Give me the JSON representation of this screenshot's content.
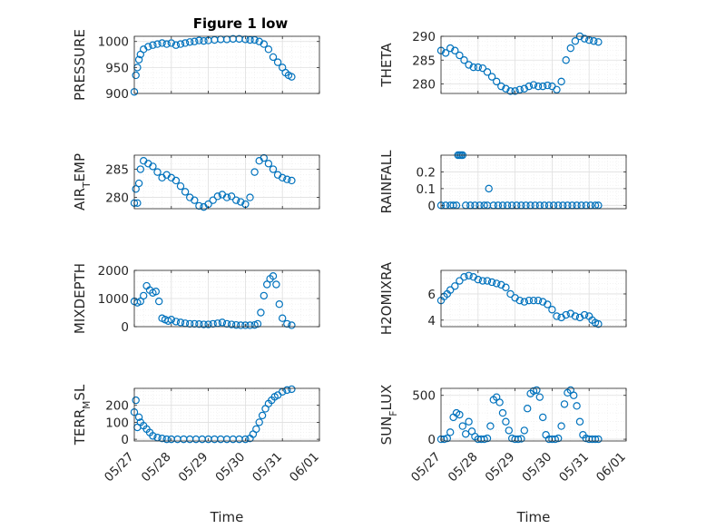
{
  "figure": {
    "title": "Figure 1 low",
    "colors": {
      "marker": "#0072BD",
      "axis": "#262626",
      "grid": "#DFDFDF",
      "minor_grid": "#EBEBEB",
      "background": "#FFFFFF"
    }
  },
  "chart_data": [
    {
      "type": "scatter",
      "position": "top-left",
      "title": "Figure 1 low",
      "ylabel": "PRESSURE",
      "xlabel": "",
      "ylim": [
        900,
        1010
      ],
      "yticks": [
        "900",
        "950",
        "1000"
      ],
      "ytick_values": [
        900,
        950,
        1000
      ],
      "xticks": [],
      "grid": true,
      "x": [
        "05/27 00:00",
        "05/27 01:00",
        "05/27 02:00",
        "05/27 03:00",
        "05/27 04:00",
        "05/27 06:00",
        "05/27 09:00",
        "05/27 12:00",
        "05/27 15:00",
        "05/27 18:00",
        "05/27 21:00",
        "05/28 00:00",
        "05/28 03:00",
        "05/28 06:00",
        "05/28 09:00",
        "05/28 12:00",
        "05/28 15:00",
        "05/28 18:00",
        "05/28 21:00",
        "05/29 00:00",
        "05/29 04:00",
        "05/29 08:00",
        "05/29 12:00",
        "05/29 16:00",
        "05/29 20:00",
        "05/30 00:00",
        "05/30 03:00",
        "05/30 06:00",
        "05/30 09:00",
        "05/30 12:00",
        "05/30 15:00",
        "05/30 18:00",
        "05/30 21:00",
        "05/31 00:00",
        "05/31 02:00",
        "05/31 04:00",
        "05/31 06:00"
      ],
      "y": [
        903,
        935,
        950,
        965,
        975,
        985,
        990,
        993,
        995,
        997,
        995,
        997,
        993,
        995,
        997,
        999,
        1000,
        1002,
        1001,
        1002,
        1003,
        1004,
        1004,
        1005,
        1005,
        1004,
        1003,
        1003,
        1000,
        995,
        985,
        970,
        960,
        950,
        940,
        935,
        932
      ]
    },
    {
      "type": "scatter",
      "position": "top-right",
      "ylabel": "THETA",
      "xlabel": "",
      "ylim": [
        278,
        290
      ],
      "yticks": [
        "280",
        "285",
        "290"
      ],
      "ytick_values": [
        280,
        285,
        290
      ],
      "xticks": [],
      "grid": true,
      "x": [
        "05/27 00:00",
        "05/27 03:00",
        "05/27 06:00",
        "05/27 09:00",
        "05/27 12:00",
        "05/27 15:00",
        "05/27 18:00",
        "05/27 21:00",
        "05/28 00:00",
        "05/28 03:00",
        "05/28 06:00",
        "05/28 09:00",
        "05/28 12:00",
        "05/28 15:00",
        "05/28 18:00",
        "05/28 21:00",
        "05/29 00:00",
        "05/29 03:00",
        "05/29 06:00",
        "05/29 09:00",
        "05/29 12:00",
        "05/29 15:00",
        "05/29 18:00",
        "05/29 21:00",
        "05/30 00:00",
        "05/30 03:00",
        "05/30 06:00",
        "05/30 09:00",
        "05/30 12:00",
        "05/30 15:00",
        "05/30 18:00",
        "05/30 21:00",
        "05/31 00:00",
        "05/31 03:00",
        "05/31 06:00"
      ],
      "y": [
        287,
        286.5,
        287.5,
        287,
        286,
        285,
        284,
        283.5,
        283.5,
        283.3,
        282.5,
        281.5,
        280.5,
        279.5,
        279,
        278.5,
        278.5,
        278.8,
        279,
        279.5,
        279.8,
        279.5,
        279.5,
        279.7,
        279.5,
        278.8,
        280.5,
        285,
        287.5,
        289,
        290,
        289.5,
        289.2,
        289,
        288.8
      ]
    },
    {
      "type": "scatter",
      "position": "mid-upper-left",
      "ylabel": "AIR_TEMP",
      "xlabel": "",
      "ylim": [
        278,
        287.5
      ],
      "yticks": [
        "280",
        "285"
      ],
      "ytick_values": [
        280,
        285
      ],
      "xticks": [],
      "grid": true,
      "x": [
        "05/27 00:00",
        "05/27 01:00",
        "05/27 02:00",
        "05/27 03:00",
        "05/27 04:00",
        "05/27 06:00",
        "05/27 09:00",
        "05/27 12:00",
        "05/27 15:00",
        "05/27 18:00",
        "05/27 21:00",
        "05/28 00:00",
        "05/28 03:00",
        "05/28 06:00",
        "05/28 09:00",
        "05/28 12:00",
        "05/28 15:00",
        "05/28 18:00",
        "05/28 21:00",
        "05/29 00:00",
        "05/29 03:00",
        "05/29 06:00",
        "05/29 09:00",
        "05/29 12:00",
        "05/29 15:00",
        "05/29 18:00",
        "05/29 21:00",
        "05/30 00:00",
        "05/30 03:00",
        "05/30 06:00",
        "05/30 09:00",
        "05/30 12:00",
        "05/30 15:00",
        "05/30 18:00",
        "05/30 21:00",
        "05/31 00:00",
        "05/31 03:00",
        "05/31 06:00"
      ],
      "y": [
        279,
        281.5,
        279,
        282.5,
        285,
        286.5,
        286,
        285.5,
        284.5,
        283.5,
        284,
        283.5,
        283,
        282,
        281,
        280,
        279.5,
        278.5,
        278.3,
        278.8,
        279.5,
        280.2,
        280.5,
        280,
        280.2,
        279.5,
        279.2,
        278.8,
        280,
        284.5,
        286.5,
        287,
        286,
        285,
        284,
        283.5,
        283.2,
        283
      ]
    },
    {
      "type": "scatter",
      "position": "mid-upper-right",
      "ylabel": "RAINFALL",
      "xlabel": "",
      "ylim": [
        -0.02,
        0.3
      ],
      "yticks": [
        "0",
        "0.1",
        "0.2"
      ],
      "ytick_values": [
        0,
        0.1,
        0.2
      ],
      "xticks": [],
      "grid": true,
      "x": [
        "05/27 00:00",
        "05/27 03:00",
        "05/27 06:00",
        "05/27 08:00",
        "05/27 10:00",
        "05/27 11:00",
        "05/27 12:00",
        "05/27 13:00",
        "05/27 14:00",
        "05/27 16:00",
        "05/27 19:00",
        "05/27 22:00",
        "05/28 01:00",
        "05/28 04:00",
        "05/28 06:00",
        "05/28 07:00",
        "05/28 10:00",
        "05/28 13:00",
        "05/28 16:00",
        "05/28 19:00",
        "05/28 22:00",
        "05/29 01:00",
        "05/29 04:00",
        "05/29 07:00",
        "05/29 10:00",
        "05/29 13:00",
        "05/29 16:00",
        "05/29 19:00",
        "05/29 22:00",
        "05/30 01:00",
        "05/30 04:00",
        "05/30 07:00",
        "05/30 10:00",
        "05/30 13:00",
        "05/30 16:00",
        "05/30 19:00",
        "05/30 22:00",
        "05/31 01:00",
        "05/31 04:00",
        "05/31 06:00"
      ],
      "y": [
        0,
        0,
        0,
        0,
        0,
        0.3,
        0.3,
        0.3,
        0.3,
        0,
        0,
        0,
        0,
        0,
        0,
        0.1,
        0,
        0,
        0,
        0,
        0,
        0,
        0,
        0,
        0,
        0,
        0,
        0,
        0,
        0,
        0,
        0,
        0,
        0,
        0,
        0,
        0,
        0,
        0,
        0
      ]
    },
    {
      "type": "scatter",
      "position": "mid-lower-left",
      "ylabel": "MIXDEPTH",
      "xlabel": "",
      "ylim": [
        0,
        2000
      ],
      "yticks": [
        "0",
        "1000",
        "2000"
      ],
      "ytick_values": [
        0,
        1000,
        2000
      ],
      "xticks": [],
      "grid": true,
      "x": [
        "05/27 00:00",
        "05/27 02:00",
        "05/27 04:00",
        "05/27 06:00",
        "05/27 08:00",
        "05/27 10:00",
        "05/27 12:00",
        "05/27 14:00",
        "05/27 16:00",
        "05/27 18:00",
        "05/27 20:00",
        "05/27 22:00",
        "05/28 00:00",
        "05/28 03:00",
        "05/28 06:00",
        "05/28 09:00",
        "05/28 12:00",
        "05/28 15:00",
        "05/28 18:00",
        "05/28 21:00",
        "05/29 00:00",
        "05/29 03:00",
        "05/29 06:00",
        "05/29 09:00",
        "05/29 12:00",
        "05/29 15:00",
        "05/29 18:00",
        "05/29 21:00",
        "05/30 00:00",
        "05/30 03:00",
        "05/30 06:00",
        "05/30 08:00",
        "05/30 10:00",
        "05/30 12:00",
        "05/30 14:00",
        "05/30 16:00",
        "05/30 18:00",
        "05/30 20:00",
        "05/30 22:00",
        "05/31 00:00",
        "05/31 03:00",
        "05/31 06:00"
      ],
      "y": [
        900,
        850,
        900,
        1100,
        1450,
        1300,
        1200,
        1250,
        900,
        300,
        250,
        200,
        250,
        180,
        150,
        120,
        100,
        100,
        90,
        80,
        80,
        100,
        120,
        150,
        100,
        80,
        60,
        50,
        50,
        50,
        60,
        100,
        500,
        1100,
        1500,
        1700,
        1800,
        1500,
        800,
        300,
        100,
        50
      ]
    },
    {
      "type": "scatter",
      "position": "mid-lower-right",
      "ylabel": "H2OMIXRA",
      "xlabel": "",
      "ylim": [
        3.5,
        7.8
      ],
      "yticks": [
        "4",
        "6"
      ],
      "ytick_values": [
        4,
        6
      ],
      "xticks": [],
      "grid": true,
      "x": [
        "05/27 00:00",
        "05/27 02:00",
        "05/27 04:00",
        "05/27 06:00",
        "05/27 09:00",
        "05/27 12:00",
        "05/27 15:00",
        "05/27 18:00",
        "05/27 21:00",
        "05/28 00:00",
        "05/28 03:00",
        "05/28 06:00",
        "05/28 09:00",
        "05/28 12:00",
        "05/28 15:00",
        "05/28 18:00",
        "05/28 21:00",
        "05/29 00:00",
        "05/29 03:00",
        "05/29 06:00",
        "05/29 09:00",
        "05/29 12:00",
        "05/29 15:00",
        "05/29 18:00",
        "05/29 21:00",
        "05/30 00:00",
        "05/30 03:00",
        "05/30 06:00",
        "05/30 09:00",
        "05/30 12:00",
        "05/30 15:00",
        "05/30 18:00",
        "05/30 21:00",
        "05/31 00:00",
        "05/31 02:00",
        "05/31 04:00",
        "05/31 06:00"
      ],
      "y": [
        5.5,
        5.8,
        6,
        6.3,
        6.6,
        7,
        7.3,
        7.4,
        7.3,
        7.1,
        7,
        7,
        6.9,
        6.8,
        6.7,
        6.5,
        6,
        5.7,
        5.5,
        5.4,
        5.5,
        5.5,
        5.5,
        5.4,
        5.2,
        4.8,
        4.3,
        4.2,
        4.4,
        4.5,
        4.3,
        4.2,
        4.4,
        4.3,
        4,
        3.8,
        3.7
      ]
    },
    {
      "type": "scatter",
      "position": "bottom-left",
      "ylabel": "TERR_MSL",
      "xlabel": "Time",
      "ylim": [
        -10,
        300
      ],
      "yticks": [
        "0",
        "100",
        "200"
      ],
      "ytick_values": [
        0,
        100,
        200
      ],
      "xticks": [
        "05/27",
        "05/28",
        "05/29",
        "05/30",
        "05/31",
        "06/01"
      ],
      "grid": true,
      "x": [
        "05/27 00:00",
        "05/27 01:00",
        "05/27 02:00",
        "05/27 03:00",
        "05/27 04:00",
        "05/27 06:00",
        "05/27 08:00",
        "05/27 10:00",
        "05/27 12:00",
        "05/27 15:00",
        "05/27 18:00",
        "05/27 21:00",
        "05/28 00:00",
        "05/28 04:00",
        "05/28 08:00",
        "05/28 12:00",
        "05/28 16:00",
        "05/28 20:00",
        "05/29 00:00",
        "05/29 04:00",
        "05/29 08:00",
        "05/29 12:00",
        "05/29 16:00",
        "05/29 20:00",
        "05/30 00:00",
        "05/30 03:00",
        "05/30 05:00",
        "05/30 07:00",
        "05/30 09:00",
        "05/30 11:00",
        "05/30 13:00",
        "05/30 15:00",
        "05/30 17:00",
        "05/30 19:00",
        "05/30 21:00",
        "05/31 00:00",
        "05/31 03:00",
        "05/31 06:00"
      ],
      "y": [
        160,
        230,
        70,
        130,
        100,
        80,
        60,
        40,
        20,
        10,
        5,
        0,
        0,
        0,
        0,
        0,
        0,
        0,
        0,
        0,
        0,
        0,
        0,
        0,
        0,
        5,
        30,
        60,
        100,
        140,
        180,
        210,
        230,
        250,
        260,
        280,
        290,
        295
      ]
    },
    {
      "type": "scatter",
      "position": "bottom-right",
      "ylabel": "SUN_FLUX",
      "xlabel": "Time",
      "ylim": [
        -20,
        580
      ],
      "yticks": [
        "0",
        "500"
      ],
      "ytick_values": [
        0,
        500
      ],
      "xticks": [
        "05/27",
        "05/28",
        "05/29",
        "05/30",
        "05/31",
        "06/01"
      ],
      "grid": true,
      "x": [
        "05/27 00:00",
        "05/27 02:00",
        "05/27 04:00",
        "05/27 06:00",
        "05/27 08:00",
        "05/27 10:00",
        "05/27 12:00",
        "05/27 14:00",
        "05/27 16:00",
        "05/27 18:00",
        "05/27 20:00",
        "05/27 22:00",
        "05/28 00:00",
        "05/28 02:00",
        "05/28 04:00",
        "05/28 06:00",
        "05/28 08:00",
        "05/28 10:00",
        "05/28 12:00",
        "05/28 14:00",
        "05/28 16:00",
        "05/28 18:00",
        "05/28 20:00",
        "05/28 22:00",
        "05/29 00:00",
        "05/29 02:00",
        "05/29 04:00",
        "05/29 06:00",
        "05/29 08:00",
        "05/29 10:00",
        "05/29 12:00",
        "05/29 14:00",
        "05/29 16:00",
        "05/29 18:00",
        "05/29 20:00",
        "05/29 22:00",
        "05/30 00:00",
        "05/30 02:00",
        "05/30 04:00",
        "05/30 06:00",
        "05/30 08:00",
        "05/30 10:00",
        "05/30 12:00",
        "05/30 14:00",
        "05/30 16:00",
        "05/30 18:00",
        "05/30 20:00",
        "05/30 22:00",
        "05/31 00:00",
        "05/31 02:00",
        "05/31 04:00",
        "05/31 06:00"
      ],
      "y": [
        0,
        0,
        10,
        80,
        250,
        300,
        280,
        150,
        60,
        200,
        90,
        30,
        0,
        0,
        0,
        10,
        150,
        450,
        480,
        420,
        300,
        200,
        100,
        10,
        0,
        0,
        5,
        100,
        350,
        520,
        550,
        560,
        480,
        250,
        50,
        0,
        0,
        0,
        10,
        150,
        400,
        530,
        560,
        500,
        380,
        200,
        50,
        10,
        0,
        0,
        0,
        0
      ]
    }
  ]
}
